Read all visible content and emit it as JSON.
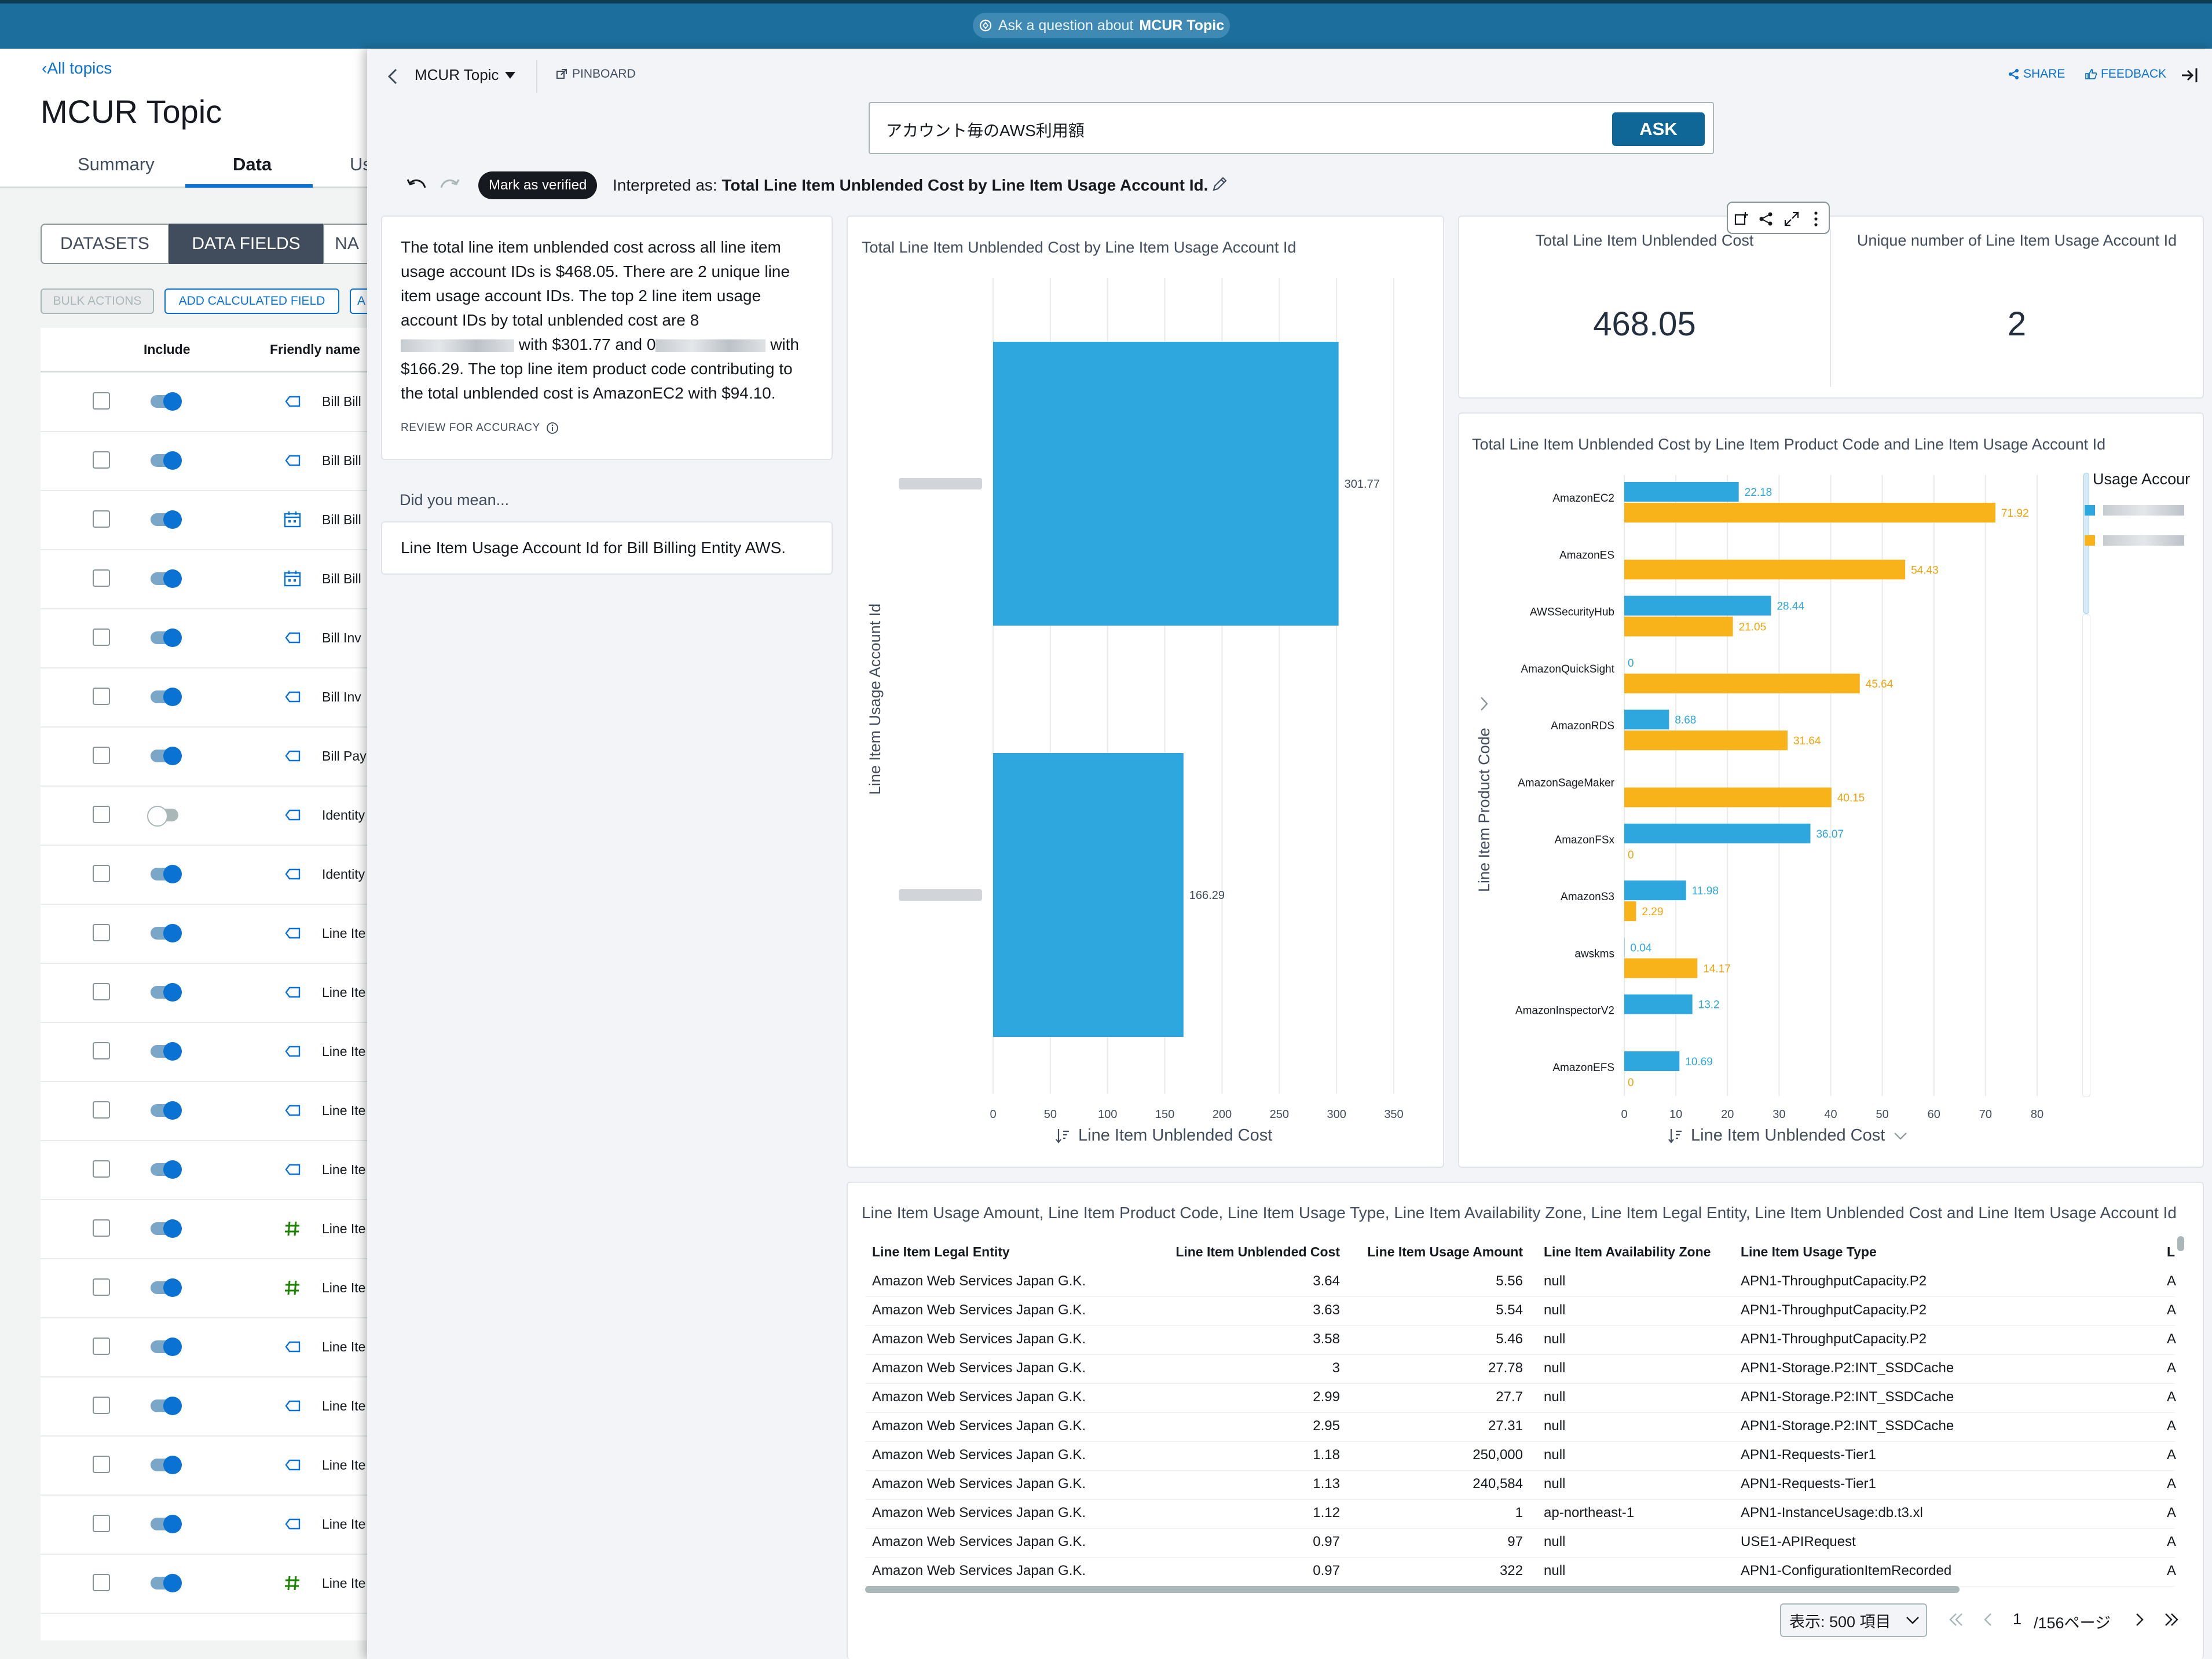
{
  "topbar": {
    "ask_prefix": "Ask a question about",
    "ask_topic": "MCUR Topic"
  },
  "left": {
    "back_link": "All topics",
    "title": "MCUR Topic",
    "tabs": [
      "Summary",
      "Data",
      "Us"
    ],
    "segments": [
      "DATASETS",
      "DATA FIELDS",
      "NA"
    ],
    "buttons": [
      "BULK ACTIONS",
      "ADD CALCULATED FIELD",
      "A"
    ],
    "columns": [
      "Include",
      "Friendly name"
    ],
    "rows": [
      {
        "name": "Bill Bill",
        "icon": "text-icon",
        "on": true
      },
      {
        "name": "Bill Bill",
        "icon": "text-icon",
        "on": true
      },
      {
        "name": "Bill Bill",
        "icon": "calendar-icon",
        "on": true
      },
      {
        "name": "Bill Bill",
        "icon": "calendar-icon",
        "on": true
      },
      {
        "name": "Bill Inv",
        "icon": "text-icon",
        "on": true
      },
      {
        "name": "Bill Inv",
        "icon": "text-icon",
        "on": true
      },
      {
        "name": "Bill Pay",
        "icon": "text-icon",
        "on": true
      },
      {
        "name": "Identity",
        "icon": "text-icon",
        "on": false
      },
      {
        "name": "Identity",
        "icon": "text-icon",
        "on": true
      },
      {
        "name": "Line Ite",
        "icon": "text-icon",
        "on": true
      },
      {
        "name": "Line Ite",
        "icon": "text-icon",
        "on": true
      },
      {
        "name": "Line Ite",
        "icon": "text-icon",
        "on": true
      },
      {
        "name": "Line Ite",
        "icon": "text-icon",
        "on": true
      },
      {
        "name": "Line Ite",
        "icon": "text-icon",
        "on": true
      },
      {
        "name": "Line Ite",
        "icon": "hash-icon",
        "on": true
      },
      {
        "name": "Line Ite",
        "icon": "hash-icon",
        "on": true
      },
      {
        "name": "Line Ite",
        "icon": "text-icon",
        "on": true
      },
      {
        "name": "Line Ite",
        "icon": "text-icon",
        "on": true
      },
      {
        "name": "Line Ite",
        "icon": "text-icon",
        "on": true
      },
      {
        "name": "Line Ite",
        "icon": "text-icon",
        "on": true
      },
      {
        "name": "Line Ite",
        "icon": "hash-icon",
        "on": true
      }
    ]
  },
  "header": {
    "topic": "MCUR Topic",
    "pinboard": "PINBOARD",
    "share": "SHARE",
    "feedback": "FEEDBACK"
  },
  "question": {
    "text": "アカウント毎のAWS利用額",
    "ask": "ASK"
  },
  "interpretation": {
    "verified": "Mark as verified",
    "prefix": "Interpreted as:",
    "text": "Total Line Item Unblended Cost by Line Item Usage Account Id."
  },
  "summary": {
    "p1": "The total line item unblended cost across all line item usage account IDs is $468.05. There are 2 unique line item usage account IDs. The top 2 line item usage account IDs by total unblended cost are 8",
    "p2": "with $301.77 and 0",
    "p3": "with $166.29. The top line item product code contributing to the total unblended cost is AmazonEC2 with $94.10.",
    "review": "REVIEW FOR ACCURACY",
    "did_you_mean": "Did you mean...",
    "suggestion": "Line Item Usage Account Id for Bill Billing Entity AWS."
  },
  "kpis": [
    {
      "label": "Total Line Item Unblended Cost",
      "value": "468.05"
    },
    {
      "label": "Unique number of Line Item Usage Account Id",
      "value": "2"
    }
  ],
  "colors": {
    "blue": "#2ea7df",
    "orange": "#f8b21a"
  },
  "chart_data": [
    {
      "type": "bar",
      "orientation": "horizontal",
      "title": "Total Line Item Unblended Cost by Line Item Usage Account Id",
      "xlabel": "Line Item Unblended Cost",
      "ylabel": "Line Item Usage Account Id",
      "values": [
        301.77,
        166.29
      ],
      "xlim": [
        0,
        350
      ],
      "xticks": [
        0,
        50,
        100,
        150,
        200,
        250,
        300,
        350
      ],
      "grid": true
    },
    {
      "type": "bar",
      "orientation": "horizontal",
      "title": "Total Line Item Unblended Cost by Line Item Product Code and Line Item Usage Account Id",
      "xlabel": "Line Item Unblended Cost",
      "ylabel": "Line Item Product Code",
      "legend_title": "Usage Accour",
      "legend_position": "right",
      "categories": [
        "AmazonEC2",
        "AmazonES",
        "AWSSecurityHub",
        "AmazonQuickSight",
        "AmazonRDS",
        "AmazonSageMaker",
        "AmazonFSx",
        "AmazonS3",
        "awskms",
        "AmazonInspectorV2",
        "AmazonEFS"
      ],
      "series": [
        {
          "values": [
            22.18,
            null,
            28.44,
            0,
            8.68,
            null,
            36.07,
            11.98,
            0.04,
            13.2,
            10.69
          ]
        },
        {
          "values": [
            71.92,
            54.43,
            21.05,
            45.64,
            31.64,
            40.15,
            0,
            2.29,
            14.17,
            null,
            0
          ]
        }
      ],
      "xlim": [
        0,
        80
      ],
      "xticks": [
        0,
        10,
        20,
        30,
        40,
        50,
        60,
        70,
        80
      ],
      "grid": true
    }
  ],
  "table": {
    "title": "Line Item Usage Amount, Line Item Product Code, Line Item Usage Type, Line Item Availability Zone, Line Item Legal Entity, Line Item Unblended Cost and Line Item Usage Account Id",
    "columns": [
      "Line Item Legal Entity",
      "Line Item Unblended Cost",
      "Line Item Usage Amount",
      "Line Item Availability Zone",
      "Line Item Usage Type",
      "L"
    ],
    "rows": [
      [
        "Amazon Web Services Japan G.K.",
        "3.64",
        "5.56",
        "null",
        "APN1-ThroughputCapacity.P2",
        "A"
      ],
      [
        "Amazon Web Services Japan G.K.",
        "3.63",
        "5.54",
        "null",
        "APN1-ThroughputCapacity.P2",
        "A"
      ],
      [
        "Amazon Web Services Japan G.K.",
        "3.58",
        "5.46",
        "null",
        "APN1-ThroughputCapacity.P2",
        "A"
      ],
      [
        "Amazon Web Services Japan G.K.",
        "3",
        "27.78",
        "null",
        "APN1-Storage.P2:INT_SSDCache",
        "A"
      ],
      [
        "Amazon Web Services Japan G.K.",
        "2.99",
        "27.7",
        "null",
        "APN1-Storage.P2:INT_SSDCache",
        "A"
      ],
      [
        "Amazon Web Services Japan G.K.",
        "2.95",
        "27.31",
        "null",
        "APN1-Storage.P2:INT_SSDCache",
        "A"
      ],
      [
        "Amazon Web Services Japan G.K.",
        "1.18",
        "250,000",
        "null",
        "APN1-Requests-Tier1",
        "A"
      ],
      [
        "Amazon Web Services Japan G.K.",
        "1.13",
        "240,584",
        "null",
        "APN1-Requests-Tier1",
        "A"
      ],
      [
        "Amazon Web Services Japan G.K.",
        "1.12",
        "1",
        "ap-northeast-1",
        "APN1-InstanceUsage:db.t3.xl",
        "A"
      ],
      [
        "Amazon Web Services Japan G.K.",
        "0.97",
        "97",
        "null",
        "USE1-APIRequest",
        "A"
      ],
      [
        "Amazon Web Services Japan G.K.",
        "0.97",
        "322",
        "null",
        "APN1-ConfigurationItemRecorded",
        "A"
      ]
    ],
    "page_size": "表示: 500 項目",
    "page": "1",
    "total_pages": "/156ページ"
  }
}
